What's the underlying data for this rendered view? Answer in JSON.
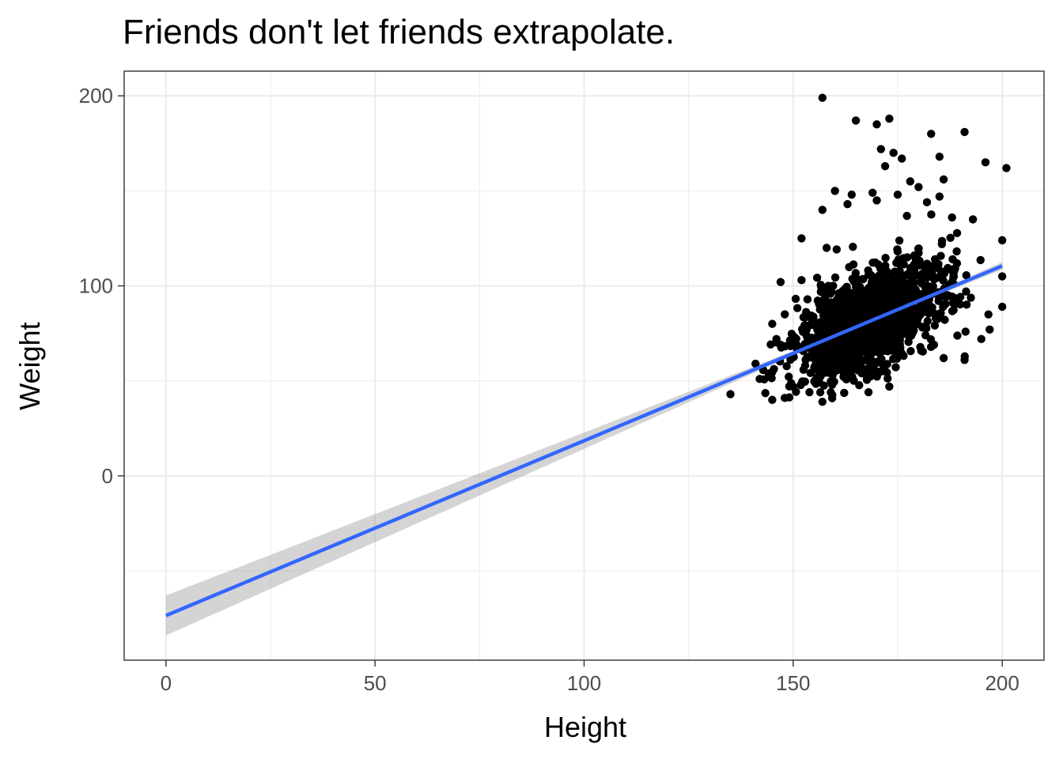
{
  "chart_data": {
    "type": "scatter",
    "title": "Friends don't let friends extrapolate.",
    "xlabel": "Height",
    "ylabel": "Weight",
    "xlim": [
      -10,
      210
    ],
    "ylim": [
      -97,
      213
    ],
    "x_ticks": [
      0,
      50,
      100,
      150,
      200
    ],
    "y_ticks": [
      0,
      100,
      200
    ],
    "grid": true,
    "colors": {
      "points": "#000000",
      "fit_line": "#3366FF",
      "confidence_band": "#999999",
      "grid": "#ebebeb",
      "panel_border": "#333333"
    },
    "regression": {
      "type": "line",
      "intercept": -73.5,
      "slope": 0.92,
      "x_range": [
        0,
        200
      ],
      "se_halfwidth_at_x0": 10.5,
      "x_center": 168,
      "se_halfwidth_at_center": 0.5
    },
    "points": {
      "visible_outliers": [
        [
          157,
          199
        ],
        [
          165,
          187
        ],
        [
          170,
          185
        ],
        [
          173,
          188
        ],
        [
          183,
          180
        ],
        [
          191,
          181
        ],
        [
          171,
          172
        ],
        [
          174,
          170
        ],
        [
          176,
          167
        ],
        [
          185,
          168
        ],
        [
          196,
          165
        ],
        [
          201,
          162
        ],
        [
          172,
          163
        ],
        [
          186,
          156
        ],
        [
          178,
          155
        ],
        [
          160,
          150
        ],
        [
          164,
          148
        ],
        [
          169,
          149
        ],
        [
          175,
          148
        ],
        [
          180,
          152
        ],
        [
          185,
          147
        ],
        [
          157,
          140
        ],
        [
          163,
          143
        ],
        [
          170,
          145
        ],
        [
          182,
          144
        ],
        [
          200,
          124
        ],
        [
          200,
          105
        ],
        [
          200,
          89
        ],
        [
          197,
          77
        ],
        [
          195,
          72
        ],
        [
          191,
          61
        ],
        [
          186,
          62
        ],
        [
          135,
          43
        ],
        [
          141,
          59
        ],
        [
          142,
          51
        ],
        [
          145,
          40
        ],
        [
          148,
          41
        ],
        [
          150,
          47
        ],
        [
          157,
          39
        ],
        [
          159,
          44
        ],
        [
          173,
          47
        ],
        [
          147,
          102
        ],
        [
          152,
          103
        ],
        [
          188,
          136
        ],
        [
          193,
          135
        ],
        [
          152,
          125
        ],
        [
          158,
          120
        ],
        [
          145,
          80
        ],
        [
          146,
          72
        ],
        [
          148,
          85
        ]
      ],
      "cluster": {
        "n": 1400,
        "mean_x": 168,
        "sd_x": 9,
        "mean_y": 81,
        "sd_y": 13,
        "slope": 0.92,
        "seed": 7
      }
    }
  }
}
